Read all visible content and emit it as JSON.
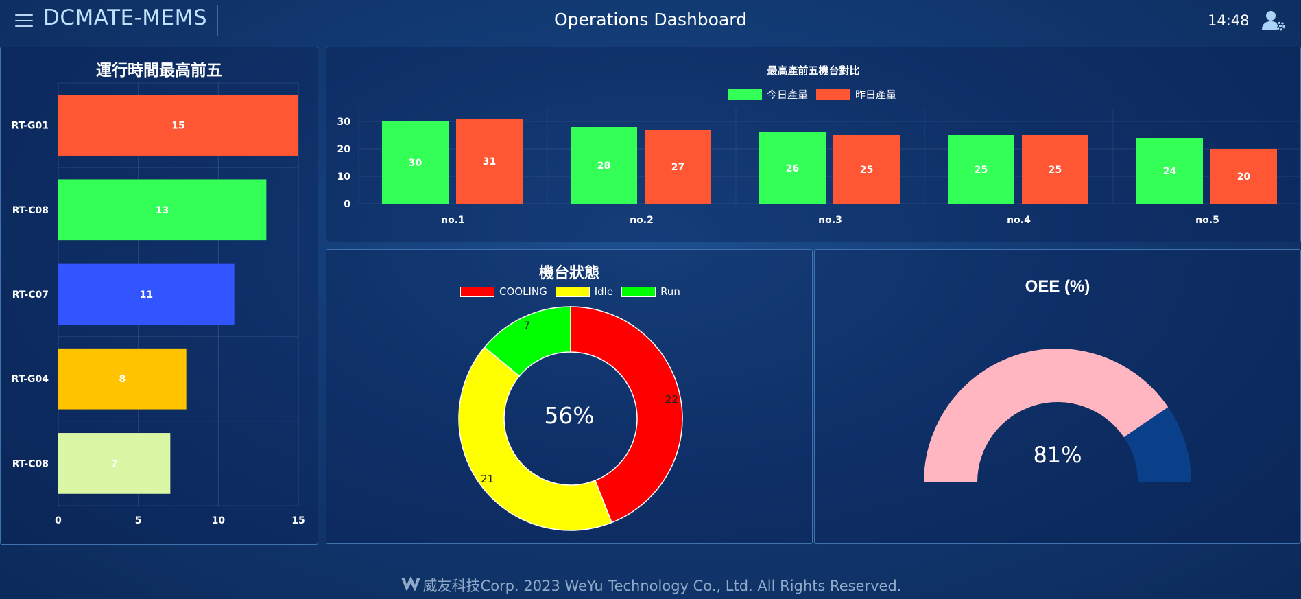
{
  "header": {
    "brand": "DCMATE-MEMS",
    "title": "Operations Dashboard",
    "time": "14:48"
  },
  "runtime_panel": {
    "title": "運行時間最高前五"
  },
  "output_panel": {
    "title": "最高產前五機台對比",
    "legend": [
      "今日產量",
      "昨日產量"
    ]
  },
  "status_panel": {
    "title": "機台狀態",
    "legend": [
      "COOLING",
      "Idle",
      "Run"
    ],
    "center_value": "56%"
  },
  "oee_panel": {
    "title": "OEE (%)",
    "center_value": "81%"
  },
  "footer": {
    "brand_cn": "威友科技",
    "text": "Corp. 2023 WeYu Technology Co., Ltd. All Rights Reserved."
  },
  "colors": {
    "today": "#33ff57",
    "yesterday": "#ff5733",
    "cooling": "#ff0000",
    "idle": "#ffff00",
    "run": "#00ff00",
    "gauge_fill": "#ffb6c1",
    "gauge_rest": "#0a3f8a"
  },
  "chart_data": [
    {
      "type": "bar",
      "orientation": "horizontal",
      "categories": [
        "RT-G01",
        "RT-C08",
        "RT-C07",
        "RT-G04",
        "RT-C08"
      ],
      "values": [
        15,
        13,
        11,
        8,
        7
      ],
      "colors": [
        "#ff5733",
        "#33ff57",
        "#3355ff",
        "#ffc300",
        "#daf7a6"
      ],
      "xlim": [
        0,
        15
      ],
      "xticks": [
        0,
        5,
        10,
        15
      ],
      "grid": true
    },
    {
      "type": "bar",
      "categories": [
        "no.1",
        "no.2",
        "no.3",
        "no.4",
        "no.5"
      ],
      "series": [
        {
          "name": "今日產量",
          "values": [
            30,
            28,
            26,
            25,
            24
          ]
        },
        {
          "name": "昨日產量",
          "values": [
            31,
            27,
            25,
            25,
            20
          ]
        }
      ],
      "ylim": [
        0,
        35
      ],
      "yticks": [
        0,
        10,
        20,
        30
      ],
      "grid": true,
      "legend": "top"
    },
    {
      "type": "pie",
      "variant": "doughnut",
      "labels": [
        "COOLING",
        "Idle",
        "Run"
      ],
      "values": [
        22,
        21,
        7
      ],
      "legend": "top"
    },
    {
      "type": "pie",
      "variant": "half-doughnut gauge",
      "values": [
        81,
        19
      ]
    }
  ]
}
